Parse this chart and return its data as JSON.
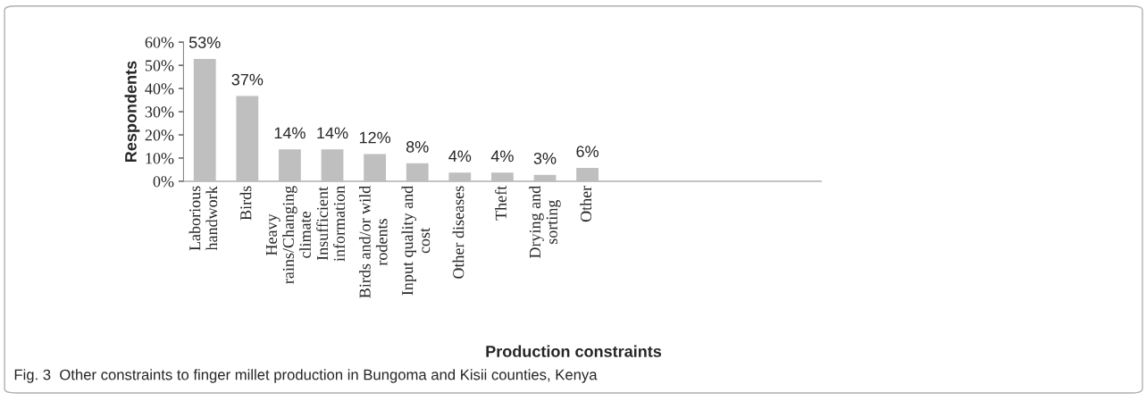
{
  "chart_data": {
    "type": "bar",
    "xlabel": "Production constraints",
    "ylabel": "Respondents",
    "categories": [
      "Laborious\nhandwork",
      "Birds",
      "Heavy\nrains/Changing\nclimate",
      "Insufficient\ninformation",
      "Birds and/or wild\nrodents",
      "Input quality and\ncost",
      "Other diseases",
      "Theft",
      "Drying and\nsorting",
      "Other"
    ],
    "values": [
      53,
      37,
      14,
      14,
      12,
      8,
      4,
      4,
      3,
      6
    ],
    "value_labels": [
      "53%",
      "37%",
      "14%",
      "14%",
      "12%",
      "8%",
      "4%",
      "4%",
      "3%",
      "6%"
    ],
    "color": "#bfbfbf",
    "ylim": [
      0,
      60
    ],
    "yticks": [
      {
        "value": 0,
        "label": "0%"
      },
      {
        "value": 10,
        "label": "10%"
      },
      {
        "value": 20,
        "label": "20%"
      },
      {
        "value": 30,
        "label": "30%"
      },
      {
        "value": 40,
        "label": "40%"
      },
      {
        "value": 50,
        "label": "50%"
      },
      {
        "value": 60,
        "label": "60%"
      }
    ],
    "grid": false,
    "legend": false,
    "annotations": [
      "Fig. 3  Other constraints to finger millet production in Bungoma and Kisii counties, Kenya"
    ]
  }
}
